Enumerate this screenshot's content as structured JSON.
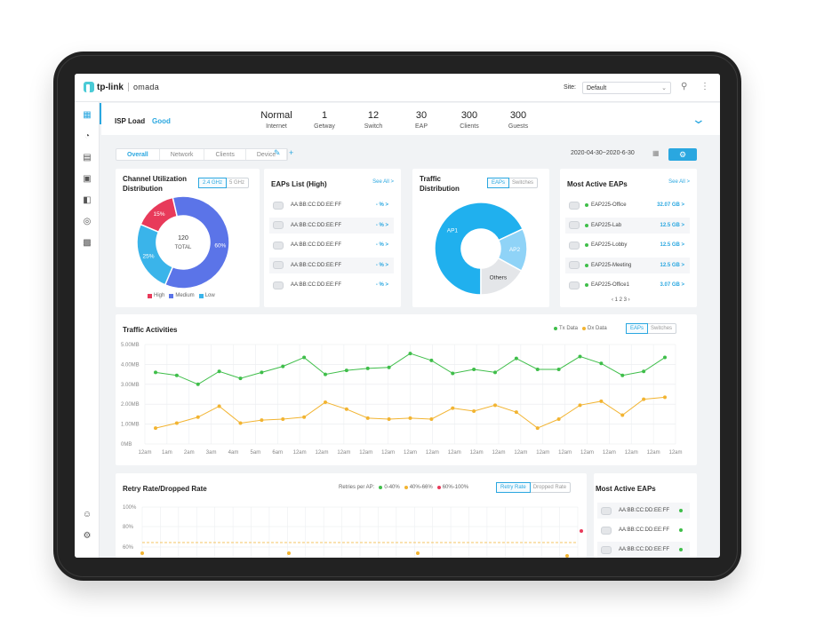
{
  "topbar": {
    "brand": "tp-link",
    "product": "omada",
    "site_label": "Site:",
    "site_value": "Default"
  },
  "nav_icons": [
    "dashboard-icon",
    "statistics-icon",
    "map-icon",
    "devices-icon",
    "logs-icon",
    "location-icon",
    "insight-icon"
  ],
  "nav_bottom_icons": [
    "account-icon",
    "settings-icon"
  ],
  "status": {
    "isp_label": "ISP Load",
    "isp_value": "Good",
    "stats": [
      {
        "value": "Normal",
        "label": "Internet"
      },
      {
        "value": "1",
        "label": "Getway"
      },
      {
        "value": "12",
        "label": "Switch"
      },
      {
        "value": "30",
        "label": "EAP"
      },
      {
        "value": "300",
        "label": "Clients"
      },
      {
        "value": "300",
        "label": "Guests"
      }
    ]
  },
  "tabs": [
    "Overall",
    "Network",
    "Clients",
    "Device"
  ],
  "date_range": "2020-04-30~2020-6-30",
  "channel": {
    "title_line1": "Channel Utilization",
    "title_line2": "Distribution",
    "band_on": "2.4 GHz",
    "band_off": "5 GHz",
    "center_value": "120",
    "center_label": "TOTAL",
    "slices": [
      {
        "label": "15%",
        "value": 15,
        "color": "#e83a5a",
        "name": "High"
      },
      {
        "label": "60%",
        "value": 60,
        "color": "#5b74e8",
        "name": "Medium"
      },
      {
        "label": "25%",
        "value": 25,
        "color": "#3ab4ea",
        "name": "Low"
      }
    ]
  },
  "eaps_list": {
    "title": "EAPs List (High)",
    "see_all": "See All >",
    "rows": [
      {
        "mac": "AA:BB:CC:DD:EE:FF",
        "value": "- % >"
      },
      {
        "mac": "AA:BB:CC:DD:EE:FF",
        "value": "- % >"
      },
      {
        "mac": "AA:BB:CC:DD:EE:FF",
        "value": "- % >"
      },
      {
        "mac": "AA:BB:CC:DD:EE:FF",
        "value": "- % >"
      },
      {
        "mac": "AA:BB:CC:DD:EE:FF",
        "value": "- % >"
      }
    ]
  },
  "traffic_dist": {
    "title_line1": "Traffic",
    "title_line2": "Distribution",
    "seg_on": "EAPs",
    "seg_off": "Switches",
    "slices": [
      {
        "label": "AP1",
        "value": 68,
        "color": "#20b0ee"
      },
      {
        "label": "AP2",
        "value": 15,
        "color": "#8fd3f7"
      },
      {
        "label": "Others",
        "value": 17,
        "color": "#e4e6e9"
      }
    ]
  },
  "most_active": {
    "title": "Most Active EAPs",
    "see_all": "See All >",
    "rows": [
      {
        "name": "EAP225-Office",
        "value": "32.07 GB >"
      },
      {
        "name": "EAP225-Lab",
        "value": "12.5 GB >"
      },
      {
        "name": "EAP225-Lobby",
        "value": "12.5 GB >"
      },
      {
        "name": "EAP225-Meeting",
        "value": "12.5 GB >"
      },
      {
        "name": "EAP225-Office1",
        "value": "3.07 GB >"
      }
    ],
    "pager": "‹ 1 2 3 ›"
  },
  "traffic_activities": {
    "title": "Traffic Activities",
    "legend_tx": "Tx Data",
    "legend_dx": "Dx Data",
    "seg_on": "EAPs",
    "seg_off": "Switches"
  },
  "chart_data": {
    "type": "line",
    "y_ticks": [
      "5.00MB",
      "4.00MB",
      "3.00MB",
      "2.00MB",
      "1.00MB",
      "0MB"
    ],
    "ylim": [
      0,
      5
    ],
    "x": [
      "12am",
      "1am",
      "2am",
      "3am",
      "4am",
      "5am",
      "6am",
      "12am",
      "12am",
      "12am",
      "12am",
      "12am",
      "12am",
      "12am",
      "12am",
      "12am",
      "12am",
      "12am",
      "12am",
      "12am",
      "12am",
      "12am",
      "12am",
      "12am",
      "12am"
    ],
    "series": [
      {
        "name": "Tx Data",
        "color": "#3fbe4a",
        "values": [
          3.6,
          3.45,
          3.0,
          3.65,
          3.3,
          3.6,
          3.9,
          4.35,
          3.5,
          3.7,
          3.8,
          3.85,
          4.55,
          4.2,
          3.55,
          3.75,
          3.6,
          4.3,
          3.75,
          3.75,
          4.4,
          4.05,
          3.45,
          3.65,
          4.35
        ]
      },
      {
        "name": "Dx Data",
        "color": "#f2b431",
        "values": [
          0.8,
          1.05,
          1.35,
          1.9,
          1.05,
          1.2,
          1.25,
          1.35,
          2.1,
          1.75,
          1.3,
          1.25,
          1.3,
          1.25,
          1.8,
          1.65,
          1.95,
          1.6,
          0.8,
          1.25,
          1.95,
          2.15,
          1.45,
          2.25,
          2.35
        ]
      }
    ]
  },
  "retry": {
    "title": "Retry Rate/Dropped Rate",
    "per_ap_label": "Retries per AP:",
    "ranges": [
      {
        "label": "0-40%",
        "color": "#3fbe4a"
      },
      {
        "label": "40%-66%",
        "color": "#f2b431"
      },
      {
        "label": "60%-100%",
        "color": "#e83a5a"
      }
    ],
    "seg_on": "Retry Rate",
    "seg_off": "Dropped Rate",
    "y_ticks": [
      "100%",
      "80%",
      "60%"
    ]
  },
  "most_active_2": {
    "title": "Most Active EAPs",
    "rows": [
      {
        "mac": "AA:BB:CC:DD:EE:FF"
      },
      {
        "mac": "AA:BB:CC:DD:EE:FF"
      },
      {
        "mac": "AA:BB:CC:DD:EE:FF"
      }
    ]
  }
}
